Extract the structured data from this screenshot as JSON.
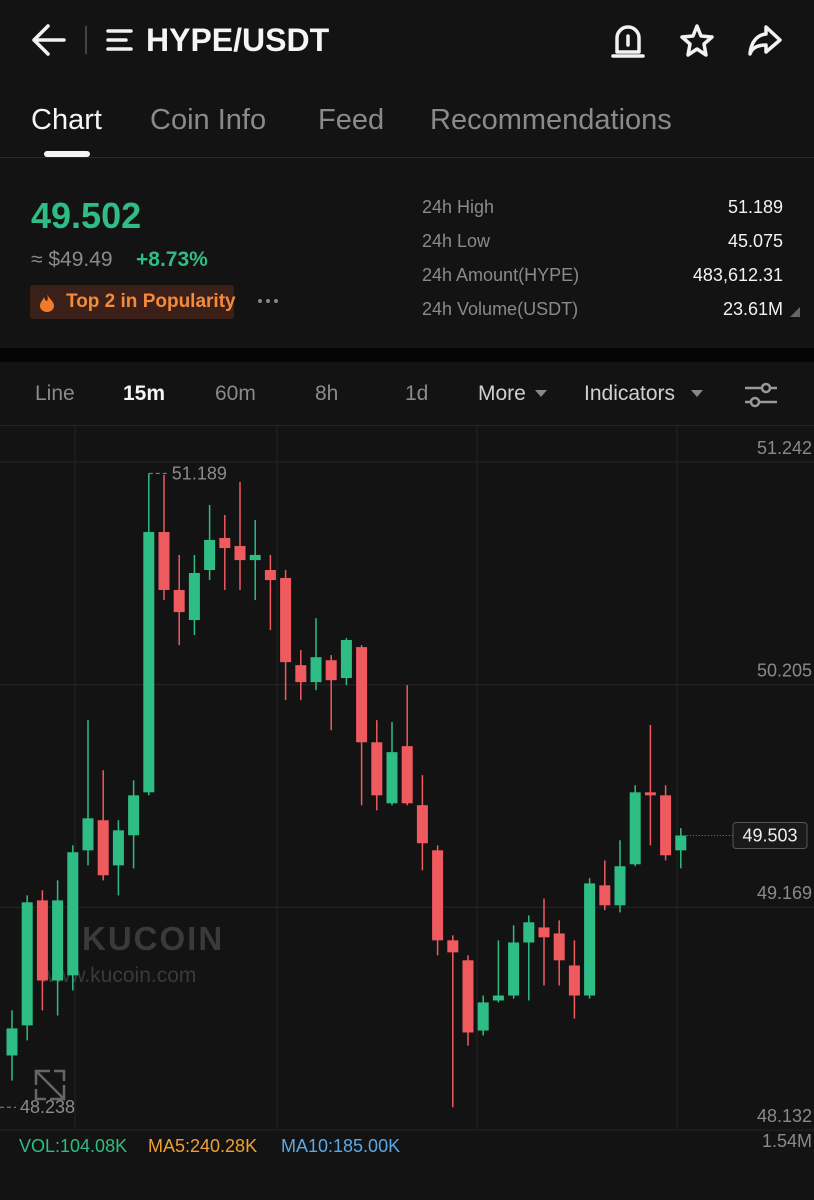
{
  "header": {
    "title": "HYPE/USDT"
  },
  "tabs": [
    "Chart",
    "Coin Info",
    "Feed",
    "Recommendations"
  ],
  "active_tab": 0,
  "price": {
    "last": "49.502",
    "fiat": "≈ $49.49",
    "change": "+8.73%",
    "badge": "Top 2 in Popularity"
  },
  "stats": [
    {
      "label": "24h High",
      "value": "51.189"
    },
    {
      "label": "24h Low",
      "value": "45.075"
    },
    {
      "label": "24h Amount(HYPE)",
      "value": "483,612.31"
    },
    {
      "label": "24h Volume(USDT)",
      "value": "23.61M"
    }
  ],
  "toolbar": [
    "Line",
    "15m",
    "60m",
    "8h",
    "1d",
    "More",
    "Indicators"
  ],
  "active_interval": 1,
  "chart_data": {
    "type": "candlestick",
    "up_color": "#2ebd85",
    "down_color": "#ef5a5f",
    "open": [
      48.479,
      48.619,
      49.201,
      48.828,
      48.852,
      49.434,
      49.574,
      49.364,
      49.504,
      49.704,
      50.916,
      50.646,
      50.506,
      50.739,
      50.888,
      50.851,
      50.785,
      50.739,
      50.702,
      50.296,
      50.217,
      50.319,
      50.236,
      50.38,
      49.937,
      49.653,
      49.919,
      49.644,
      49.434,
      49.015,
      48.922,
      48.595,
      48.735,
      48.758,
      49.005,
      49.075,
      49.047,
      48.898,
      48.758,
      49.271,
      49.178,
      49.369,
      49.704,
      49.69,
      49.434
    ],
    "high": [
      48.689,
      49.224,
      49.248,
      49.294,
      49.457,
      50.04,
      49.807,
      49.574,
      49.76,
      51.189,
      51.182,
      50.809,
      50.809,
      51.042,
      50.995,
      51.149,
      50.972,
      50.809,
      50.739,
      50.366,
      50.515,
      50.343,
      50.422,
      50.389,
      50.04,
      50.031,
      50.203,
      49.784,
      49.457,
      49.038,
      48.945,
      48.758,
      49.015,
      49.085,
      49.131,
      49.21,
      49.108,
      49.015,
      49.304,
      49.387,
      49.481,
      49.737,
      50.017,
      49.737,
      49.537
    ],
    "low": [
      48.362,
      48.549,
      48.689,
      48.665,
      48.782,
      49.364,
      49.294,
      49.224,
      49.35,
      49.69,
      50.599,
      50.389,
      50.436,
      50.692,
      50.646,
      50.646,
      50.599,
      50.459,
      50.133,
      50.133,
      50.18,
      49.993,
      50.203,
      49.644,
      49.62,
      49.644,
      49.644,
      49.341,
      48.945,
      48.238,
      48.525,
      48.572,
      48.726,
      48.744,
      48.735,
      48.805,
      48.805,
      48.651,
      48.744,
      49.155,
      49.145,
      49.36,
      49.457,
      49.387,
      49.35
    ],
    "close": [
      48.605,
      49.192,
      48.828,
      49.201,
      49.425,
      49.583,
      49.318,
      49.527,
      49.69,
      50.916,
      50.646,
      50.543,
      50.725,
      50.879,
      50.841,
      50.785,
      50.809,
      50.692,
      50.31,
      50.217,
      50.333,
      50.226,
      50.413,
      49.937,
      49.69,
      49.891,
      49.653,
      49.467,
      49.015,
      48.959,
      48.586,
      48.726,
      48.758,
      49.005,
      49.099,
      49.029,
      48.922,
      48.758,
      49.28,
      49.178,
      49.36,
      49.704,
      49.69,
      49.411,
      49.503
    ],
    "ylim": [
      48.132,
      51.414
    ],
    "yticks": [
      51.242,
      50.205,
      49.169,
      48.132
    ],
    "grid": true,
    "markers": {
      "high": 51.189,
      "low": 48.238,
      "last": 49.503
    },
    "watermark": "KUCOIN",
    "watermark_url": "www.kucoin.com",
    "volume_axis_label": "1.54M",
    "indicators": [
      {
        "name": "VOL:104.08K",
        "color": "#2ebd85"
      },
      {
        "name": "MA5:240.28K",
        "color": "#f0a030"
      },
      {
        "name": "MA10:185.00K",
        "color": "#5aa9e6"
      }
    ]
  }
}
